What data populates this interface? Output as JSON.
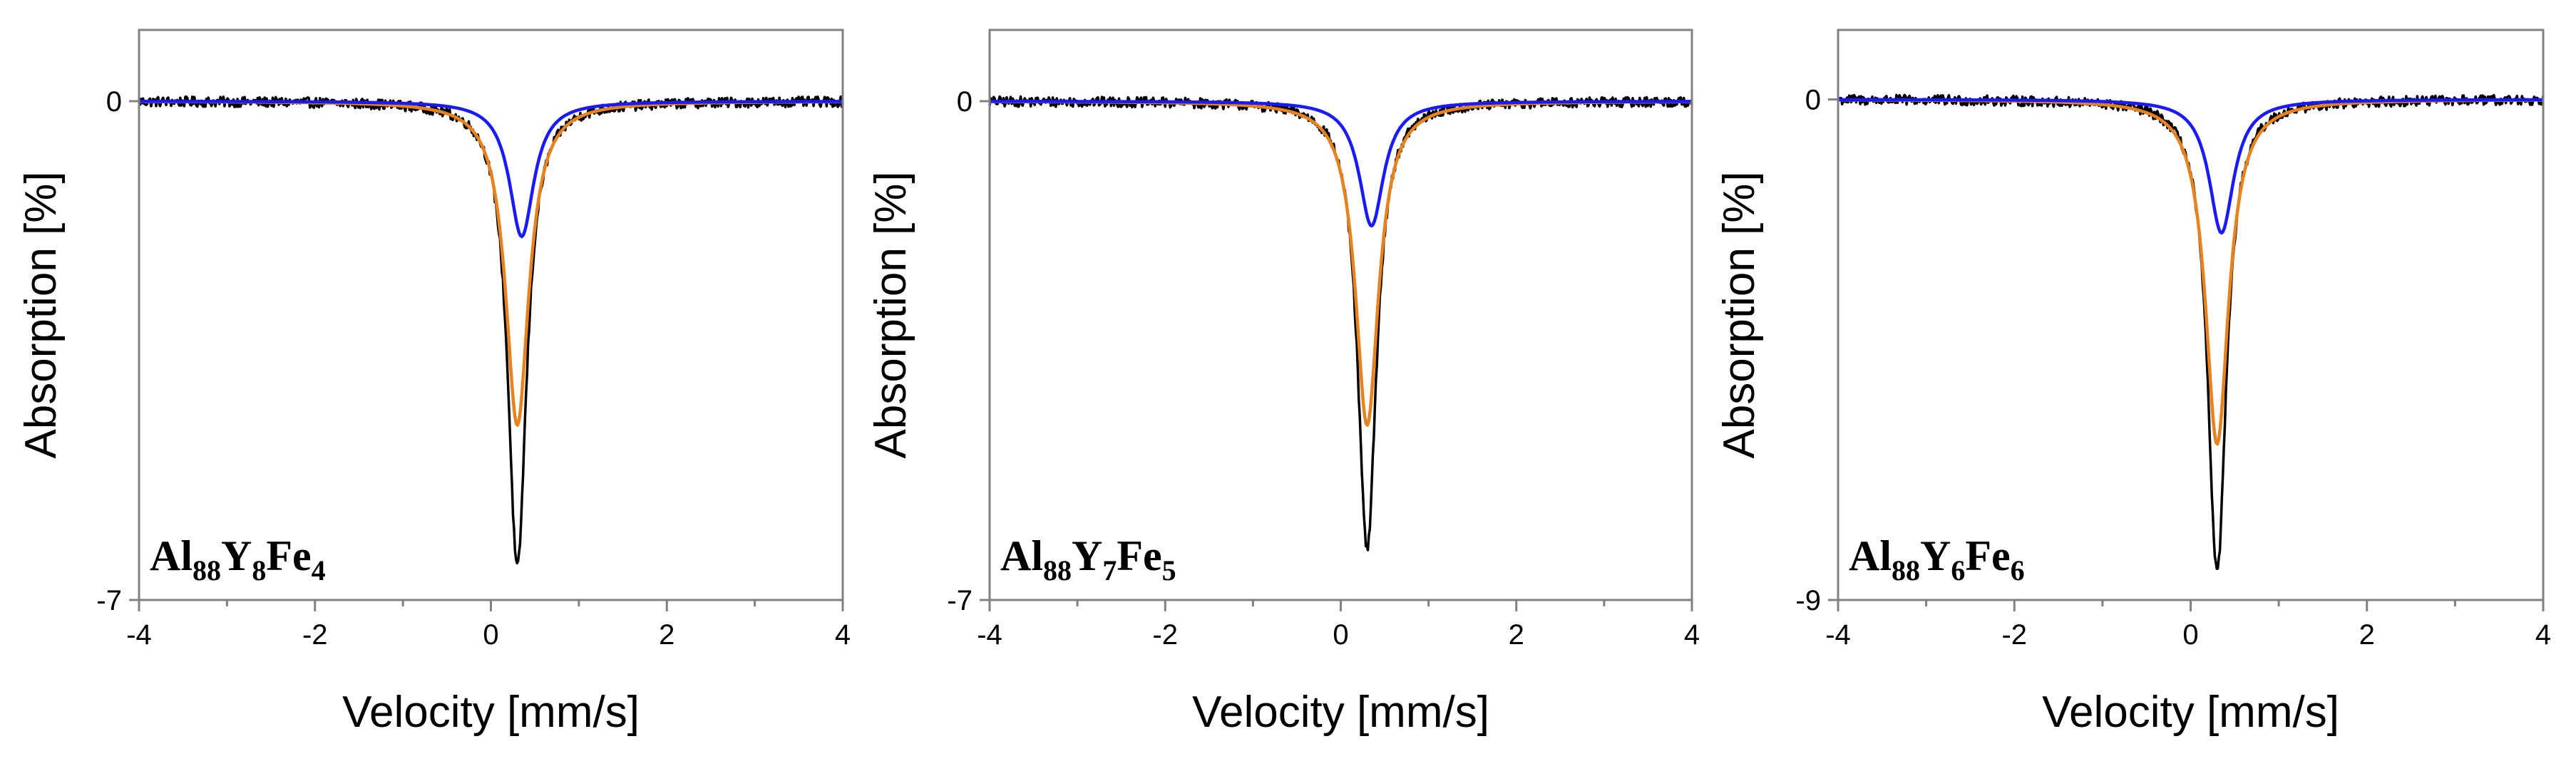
{
  "chart_data": [
    {
      "type": "line",
      "sample_label": [
        {
          "text": "Al",
          "sub": false
        },
        {
          "text": "88",
          "sub": true
        },
        {
          "text": "Y",
          "sub": false
        },
        {
          "text": "8",
          "sub": true
        },
        {
          "text": "Fe",
          "sub": false
        },
        {
          "text": "4",
          "sub": true
        }
      ],
      "xlabel": "Velocity [mm/s]",
      "ylabel": "Absorption [%]",
      "xlim": [
        -4,
        4
      ],
      "ylim": [
        -7,
        1.0
      ],
      "x_ticks": [
        -4,
        -2,
        0,
        2,
        4
      ],
      "x_tick_labels": [
        "-4",
        "-2",
        "0",
        "2",
        "4"
      ],
      "y_ticks": [
        0,
        -7
      ],
      "y_tick_labels": [
        "0",
        "-7"
      ],
      "grid": false,
      "series": [
        {
          "role": "measured",
          "color": "#000000",
          "line_shape": "lorentzian",
          "center": 0.3,
          "depth": 6.55,
          "hwhm": 0.13
        },
        {
          "role": "fit-component-2",
          "color": "#e8821e",
          "line_shape": "lorentzian",
          "center": 0.3,
          "depth": 4.55,
          "hwhm": 0.16
        },
        {
          "role": "fit-component-1",
          "color": "#1a1aff",
          "line_shape": "lorentzian",
          "center": 0.35,
          "depth": 1.9,
          "hwhm": 0.17
        }
      ]
    },
    {
      "type": "line",
      "sample_label": [
        {
          "text": "Al",
          "sub": false
        },
        {
          "text": "88",
          "sub": true
        },
        {
          "text": "Y",
          "sub": false
        },
        {
          "text": "7",
          "sub": true
        },
        {
          "text": "Fe",
          "sub": false
        },
        {
          "text": "5",
          "sub": true
        }
      ],
      "xlabel": "Velocity [mm/s]",
      "ylabel": "Absorption [%]",
      "xlim": [
        -4,
        4
      ],
      "ylim": [
        -7,
        1.0
      ],
      "x_ticks": [
        -4,
        -2,
        0,
        2,
        4
      ],
      "x_tick_labels": [
        "-4",
        "-2",
        "0",
        "2",
        "4"
      ],
      "y_ticks": [
        0,
        -7
      ],
      "y_tick_labels": [
        "0",
        "-7"
      ],
      "grid": false,
      "series": [
        {
          "role": "measured",
          "color": "#000000",
          "line_shape": "lorentzian",
          "center": 0.3,
          "depth": 6.3,
          "hwhm": 0.13
        },
        {
          "role": "fit-component-2",
          "color": "#e8821e",
          "line_shape": "lorentzian",
          "center": 0.3,
          "depth": 4.55,
          "hwhm": 0.16
        },
        {
          "role": "fit-component-1",
          "color": "#1a1aff",
          "line_shape": "lorentzian",
          "center": 0.35,
          "depth": 1.75,
          "hwhm": 0.17
        }
      ]
    },
    {
      "type": "line",
      "sample_label": [
        {
          "text": "Al",
          "sub": false
        },
        {
          "text": "88",
          "sub": true
        },
        {
          "text": "Y",
          "sub": false
        },
        {
          "text": "6",
          "sub": true
        },
        {
          "text": "Fe",
          "sub": false
        },
        {
          "text": "6",
          "sub": true
        }
      ],
      "xlabel": "Velocity [mm/s]",
      "ylabel": "Absorption [%]",
      "xlim": [
        -4,
        4
      ],
      "ylim": [
        -9,
        1.25
      ],
      "x_ticks": [
        -4,
        -2,
        0,
        2,
        4
      ],
      "x_tick_labels": [
        "-4",
        "-2",
        "0",
        "2",
        "4"
      ],
      "y_ticks": [
        0,
        -9
      ],
      "y_tick_labels": [
        "0",
        "-9"
      ],
      "grid": false,
      "series": [
        {
          "role": "measured",
          "color": "#000000",
          "line_shape": "lorentzian",
          "center": 0.3,
          "depth": 8.5,
          "hwhm": 0.13
        },
        {
          "role": "fit-component-2",
          "color": "#e8821e",
          "line_shape": "lorentzian",
          "center": 0.3,
          "depth": 6.2,
          "hwhm": 0.16
        },
        {
          "role": "fit-component-1",
          "color": "#1a1aff",
          "line_shape": "lorentzian",
          "center": 0.35,
          "depth": 2.4,
          "hwhm": 0.17
        }
      ]
    }
  ]
}
